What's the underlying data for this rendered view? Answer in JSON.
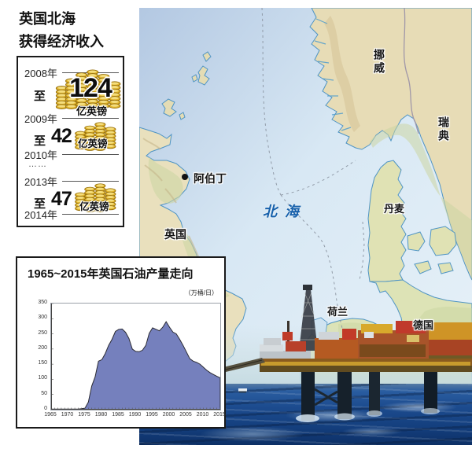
{
  "header": {
    "line1": "英国北海",
    "line2": "获得经济收入"
  },
  "income": {
    "years": [
      "2008年",
      "2009年",
      "2010年",
      "2013年",
      "2014年"
    ],
    "to": "至",
    "ellipsis": "……",
    "amounts": [
      {
        "value": "124",
        "unit": "亿英镑"
      },
      {
        "value": "42",
        "unit": "亿英镑"
      },
      {
        "value": "47",
        "unit": "亿英镑"
      }
    ]
  },
  "chart_data": {
    "type": "area",
    "title": "1965~2015年英国石油产量走向",
    "unit_label": "（万桶/日）",
    "ylabel": "万桶/日",
    "xlim": [
      1965,
      2015
    ],
    "ylim": [
      0,
      350
    ],
    "grid": false,
    "legend": "none",
    "xticks": [
      1965,
      1970,
      1975,
      1980,
      1985,
      1990,
      1995,
      2000,
      2005,
      2010,
      2015
    ],
    "yticks": [
      0,
      50,
      100,
      150,
      200,
      250,
      300,
      350
    ],
    "x": [
      1965,
      1966,
      1967,
      1968,
      1969,
      1970,
      1971,
      1972,
      1973,
      1974,
      1975,
      1976,
      1977,
      1978,
      1979,
      1980,
      1981,
      1982,
      1983,
      1984,
      1985,
      1986,
      1987,
      1988,
      1989,
      1990,
      1991,
      1992,
      1993,
      1994,
      1995,
      1996,
      1997,
      1998,
      1999,
      2000,
      2001,
      2002,
      2003,
      2004,
      2005,
      2006,
      2007,
      2008,
      2009,
      2010,
      2011,
      2012,
      2013,
      2014,
      2015
    ],
    "values": [
      2,
      2,
      2,
      2,
      2,
      2,
      2,
      2,
      2,
      3,
      5,
      25,
      78,
      108,
      160,
      165,
      185,
      212,
      232,
      258,
      265,
      266,
      255,
      235,
      200,
      192,
      191,
      196,
      212,
      252,
      270,
      265,
      260,
      272,
      290,
      272,
      256,
      250,
      232,
      212,
      190,
      168,
      160,
      156,
      150,
      140,
      130,
      122,
      116,
      110,
      105
    ],
    "area_color": "#7580bd",
    "line_color": "#2b2b33"
  },
  "map": {
    "labels": {
      "norway": "挪威",
      "sweden": "瑞典",
      "denmark": "丹麦",
      "germany": "德国",
      "netherlands": "荷兰",
      "uk": "英国",
      "aberdeen": "阿伯丁",
      "north_sea": "北海"
    },
    "sea_label_color": "#1660ab"
  }
}
